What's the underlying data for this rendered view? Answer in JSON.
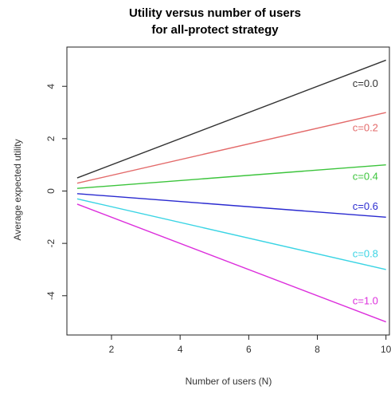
{
  "chart_data": {
    "type": "line",
    "title": [
      "Utility versus number of users",
      "for all-protect strategy"
    ],
    "xlabel": "Number of users (N)",
    "ylabel": "Average expected utility",
    "xlim": [
      0.7,
      10.1
    ],
    "ylim": [
      -5.5,
      5.5
    ],
    "xticks": [
      2,
      4,
      6,
      8,
      10
    ],
    "xtick_labels": [
      "2",
      "4",
      "6",
      "8",
      "10"
    ],
    "yticks": [
      -4,
      -2,
      0,
      2,
      4
    ],
    "ytick_labels": [
      "-4",
      "-2",
      "0",
      "2",
      "4"
    ],
    "grid": false,
    "legend": "none",
    "series": [
      {
        "name": "c=0.0",
        "color": "#333333",
        "x": [
          1,
          10
        ],
        "y": [
          0.5,
          5.0
        ],
        "label_at": [
          9.4,
          4.1
        ]
      },
      {
        "name": "c=0.2",
        "color": "#e36a6a",
        "x": [
          1,
          10
        ],
        "y": [
          0.3,
          3.0
        ],
        "label_at": [
          9.4,
          2.4
        ]
      },
      {
        "name": "c=0.4",
        "color": "#3cc43c",
        "x": [
          1,
          10
        ],
        "y": [
          0.1,
          1.0
        ],
        "label_at": [
          9.4,
          0.55
        ]
      },
      {
        "name": "c=0.6",
        "color": "#2a2ad0",
        "x": [
          1,
          10
        ],
        "y": [
          -0.1,
          -1.0
        ],
        "label_at": [
          9.4,
          -0.6
        ]
      },
      {
        "name": "c=0.8",
        "color": "#3ad4e4",
        "x": [
          1,
          10
        ],
        "y": [
          -0.3,
          -3.0
        ],
        "label_at": [
          9.4,
          -2.4
        ]
      },
      {
        "name": "c=1.0",
        "color": "#dc2edc",
        "x": [
          1,
          10
        ],
        "y": [
          -0.5,
          -5.0
        ],
        "label_at": [
          9.4,
          -4.2
        ]
      }
    ]
  }
}
